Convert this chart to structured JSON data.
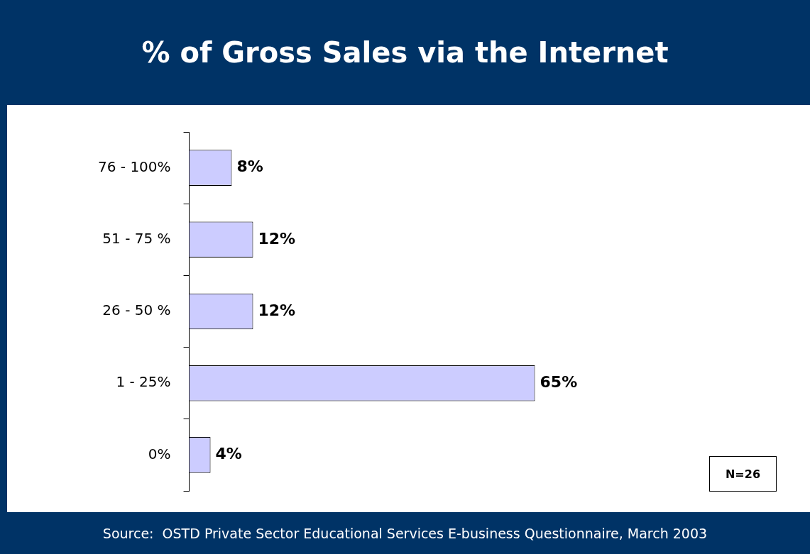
{
  "chart_data": {
    "type": "bar",
    "orientation": "horizontal",
    "title": "% of Gross Sales via the Internet",
    "categories": [
      "76 - 100%",
      "51 - 75 %",
      "26 - 50 %",
      "1 - 25%",
      "0%"
    ],
    "values": [
      8,
      12,
      12,
      65,
      4
    ],
    "value_labels": [
      "8%",
      "12%",
      "12%",
      "65%",
      "4%"
    ],
    "color": "#ccccff",
    "tick_labels": "y",
    "legend": false,
    "annotations": [
      "N=26",
      "Source:  OSTD Private Sector Educational Services E-business Questionnaire, March 2003"
    ]
  }
}
